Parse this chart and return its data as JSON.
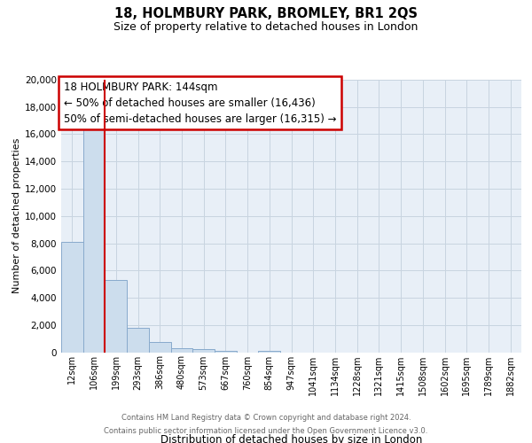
{
  "title": "18, HOLMBURY PARK, BROMLEY, BR1 2QS",
  "subtitle": "Size of property relative to detached houses in London",
  "xlabel": "Distribution of detached houses by size in London",
  "ylabel": "Number of detached properties",
  "bar_labels": [
    "12sqm",
    "106sqm",
    "199sqm",
    "293sqm",
    "386sqm",
    "480sqm",
    "573sqm",
    "667sqm",
    "760sqm",
    "854sqm",
    "947sqm",
    "1041sqm",
    "1134sqm",
    "1228sqm",
    "1321sqm",
    "1415sqm",
    "1508sqm",
    "1602sqm",
    "1695sqm",
    "1789sqm",
    "1882sqm"
  ],
  "bar_values": [
    8100,
    16600,
    5300,
    1780,
    780,
    320,
    200,
    130,
    0,
    110,
    0,
    0,
    0,
    0,
    0,
    0,
    0,
    0,
    0,
    0,
    0
  ],
  "bar_color": "#ccdded",
  "bar_edge_color": "#88aacc",
  "vline_color": "#cc0000",
  "ylim_max": 20000,
  "yticks": [
    0,
    2000,
    4000,
    6000,
    8000,
    10000,
    12000,
    14000,
    16000,
    18000,
    20000
  ],
  "annotation_title": "18 HOLMBURY PARK: 144sqm",
  "annotation_line1": "← 50% of detached houses are smaller (16,436)",
  "annotation_line2": "50% of semi-detached houses are larger (16,315) →",
  "annotation_box_facecolor": "#ffffff",
  "annotation_box_edgecolor": "#cc0000",
  "grid_color": "#c8d4e0",
  "plot_bg_color": "#e8eff7",
  "footer_line1": "Contains HM Land Registry data © Crown copyright and database right 2024.",
  "footer_line2": "Contains public sector information licensed under the Open Government Licence v3.0."
}
